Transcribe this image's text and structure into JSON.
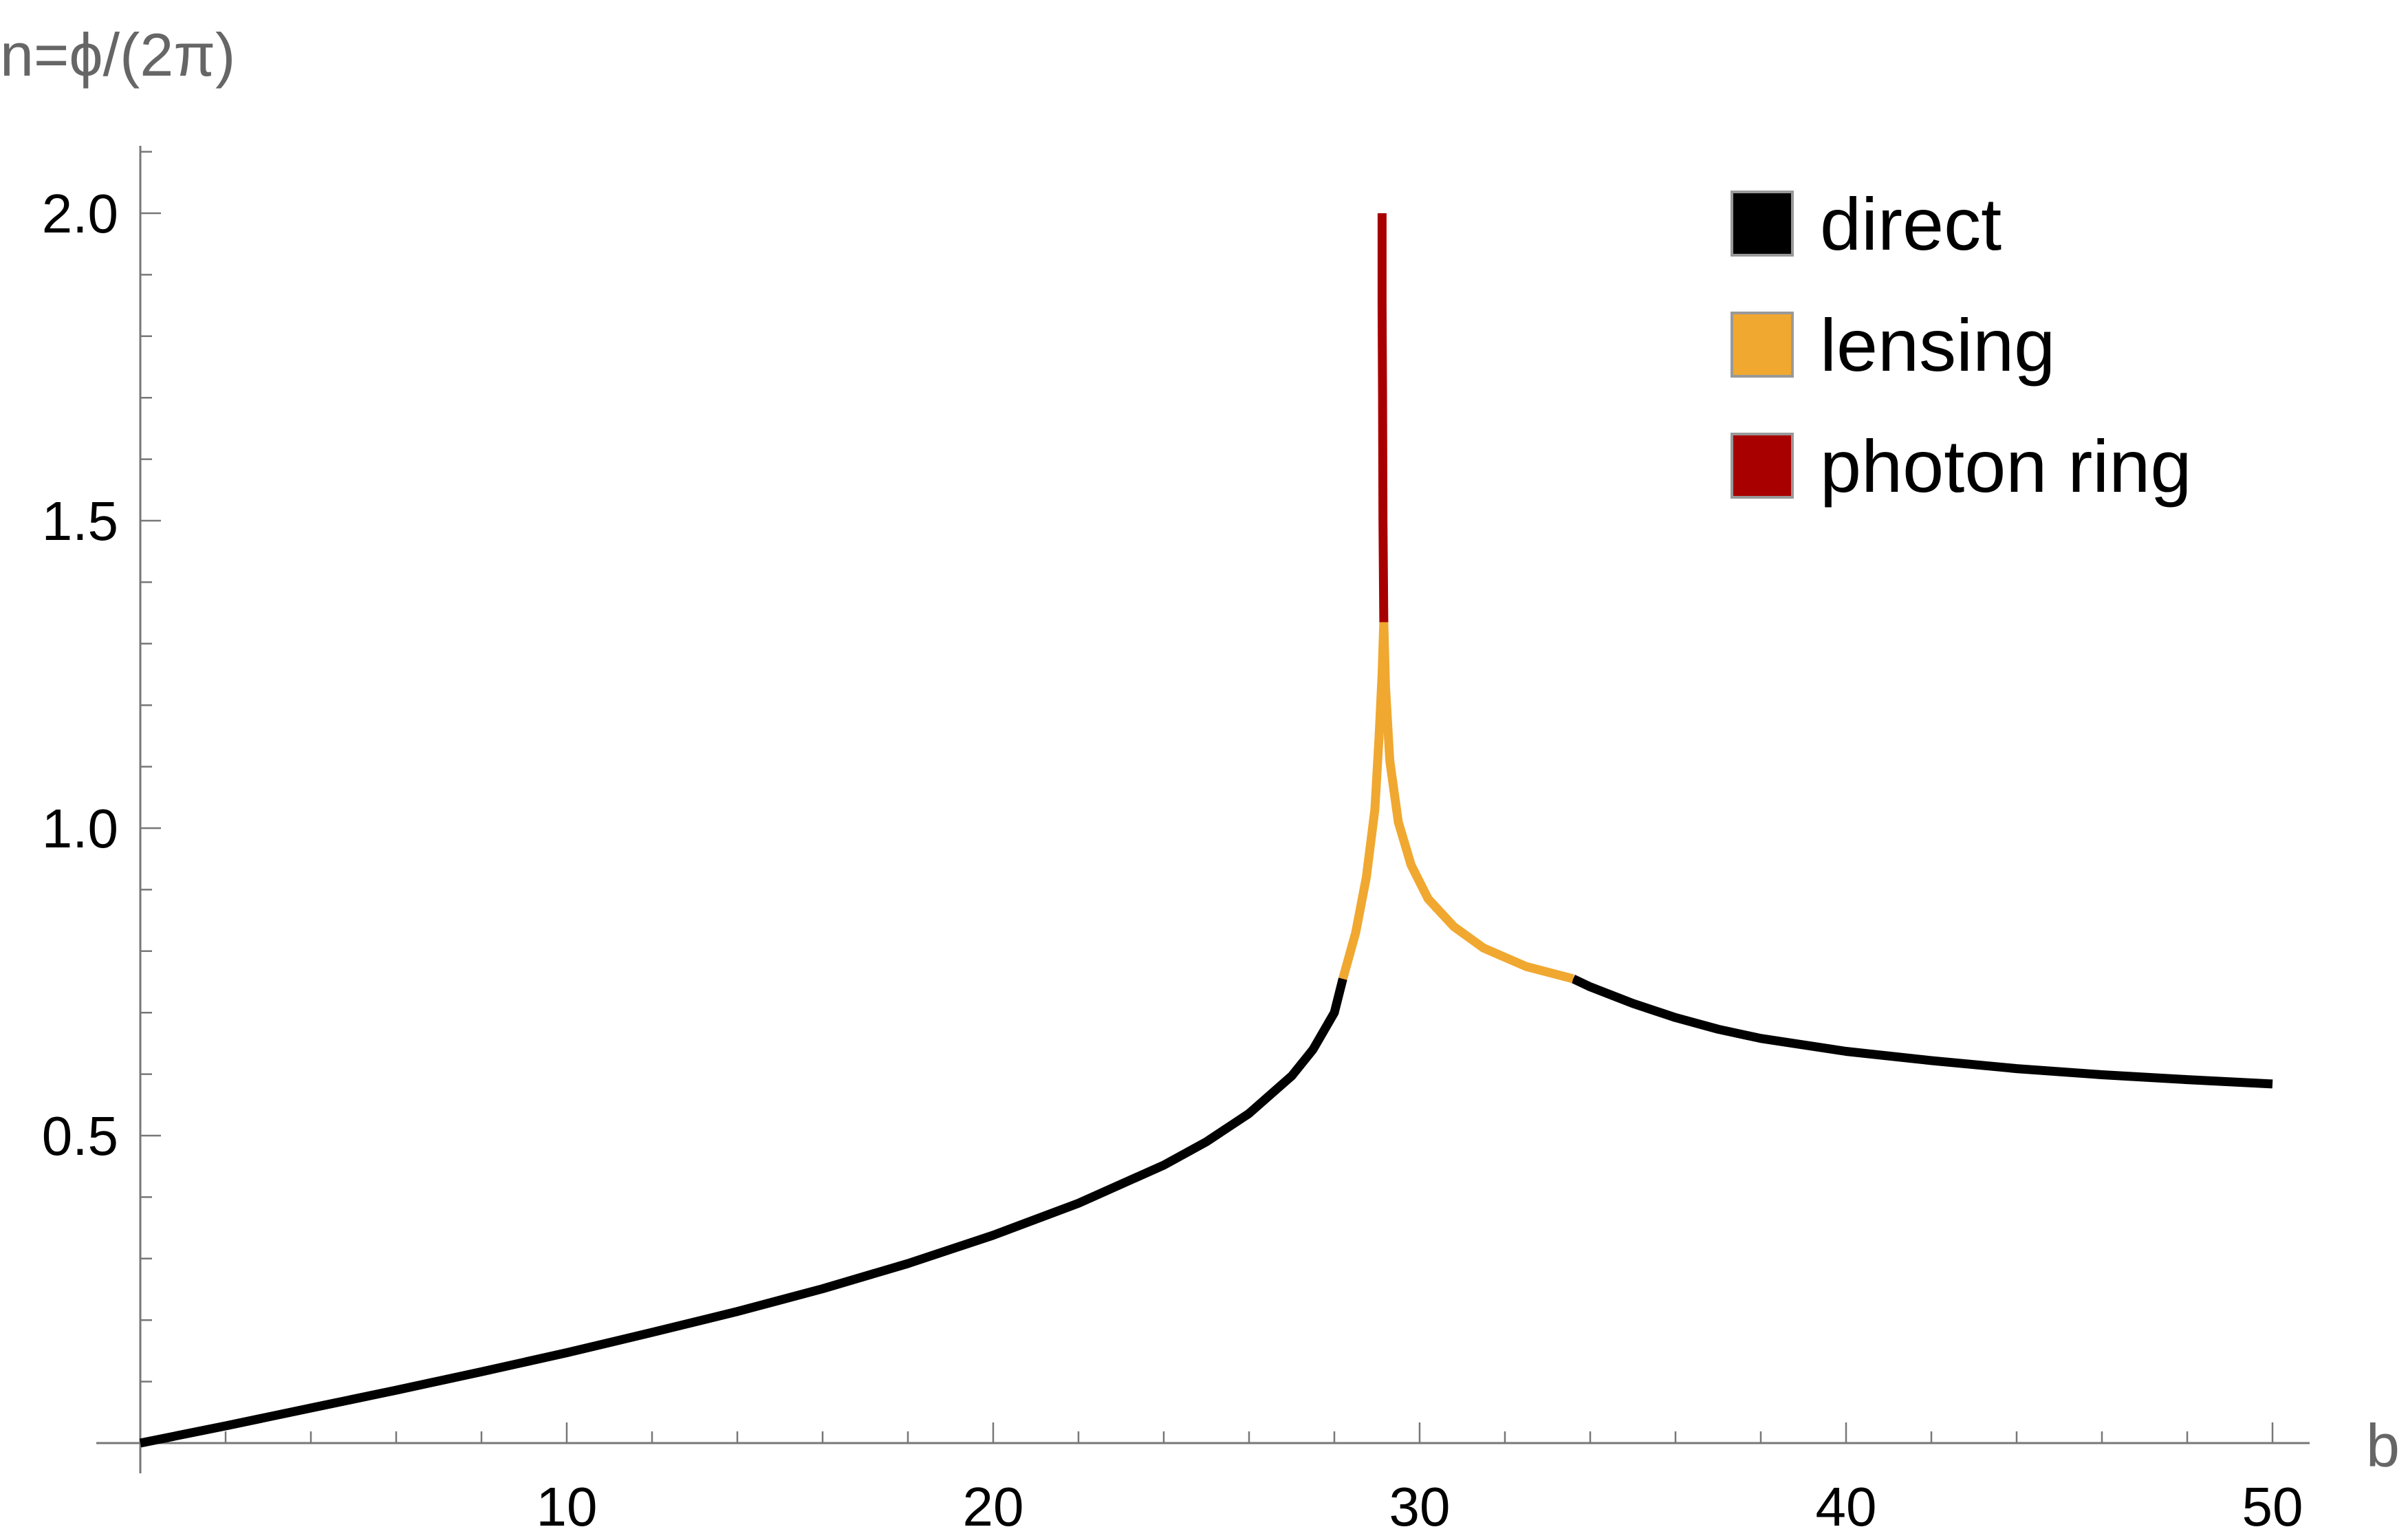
{
  "chart_data": {
    "type": "line",
    "title": "",
    "xlabel": "b",
    "ylabel": "n=ϕ/(2π)",
    "xlim": [
      0,
      51
    ],
    "ylim": [
      0,
      2.1
    ],
    "x_ticks": [
      10,
      20,
      30,
      40,
      50
    ],
    "y_ticks": [
      0.5,
      1.0,
      1.5,
      2.0
    ],
    "x_tick_labels": [
      "10",
      "20",
      "30",
      "40",
      "50"
    ],
    "y_tick_labels": [
      "0.5",
      "1.0",
      "1.5",
      "2.0"
    ],
    "grid": false,
    "legend_position": "top-right",
    "legend": [
      {
        "label": "direct",
        "color": "#000000"
      },
      {
        "label": "lensing",
        "color": "#F0A830"
      },
      {
        "label": "photon ring",
        "color": "#A80000"
      }
    ],
    "series": [
      {
        "name": "direct",
        "color": "#000000",
        "segments": [
          [
            [
              0,
              0
            ],
            [
              2,
              0.028
            ],
            [
              4,
              0.057
            ],
            [
              6,
              0.086
            ],
            [
              8,
              0.116
            ],
            [
              10,
              0.147
            ],
            [
              12,
              0.18
            ],
            [
              14,
              0.214
            ],
            [
              16,
              0.251
            ],
            [
              18,
              0.292
            ],
            [
              20,
              0.338
            ],
            [
              22,
              0.39
            ],
            [
              24,
              0.452
            ],
            [
              25,
              0.49
            ],
            [
              26,
              0.536
            ],
            [
              27,
              0.597
            ],
            [
              27.5,
              0.64
            ],
            [
              28,
              0.7
            ],
            [
              28.2,
              0.755
            ]
          ],
          [
            [
              33.6,
              0.755
            ],
            [
              34,
              0.742
            ],
            [
              35,
              0.715
            ],
            [
              36,
              0.692
            ],
            [
              37,
              0.673
            ],
            [
              38,
              0.658
            ],
            [
              40,
              0.637
            ],
            [
              42,
              0.622
            ],
            [
              44,
              0.609
            ],
            [
              46,
              0.599
            ],
            [
              48,
              0.591
            ],
            [
              50,
              0.584
            ]
          ]
        ]
      },
      {
        "name": "lensing",
        "color": "#F0A830",
        "segments": [
          [
            [
              28.2,
              0.755
            ],
            [
              28.5,
              0.83
            ],
            [
              28.75,
              0.92
            ],
            [
              28.95,
              1.03
            ],
            [
              29.05,
              1.15
            ],
            [
              29.12,
              1.25
            ],
            [
              29.16,
              1.335
            ]
          ],
          [
            [
              29.16,
              1.335
            ],
            [
              29.2,
              1.23
            ],
            [
              29.3,
              1.11
            ],
            [
              29.5,
              1.01
            ],
            [
              29.8,
              0.94
            ],
            [
              30.2,
              0.885
            ],
            [
              30.8,
              0.84
            ],
            [
              31.5,
              0.805
            ],
            [
              32.5,
              0.775
            ],
            [
              33.6,
              0.755
            ]
          ]
        ]
      },
      {
        "name": "photon ring",
        "color": "#A80000",
        "segments": [
          [
            [
              29.16,
              1.335
            ],
            [
              29.14,
              1.5
            ],
            [
              29.13,
              1.7
            ],
            [
              29.12,
              1.85
            ],
            [
              29.12,
              2.0
            ]
          ]
        ]
      }
    ]
  }
}
